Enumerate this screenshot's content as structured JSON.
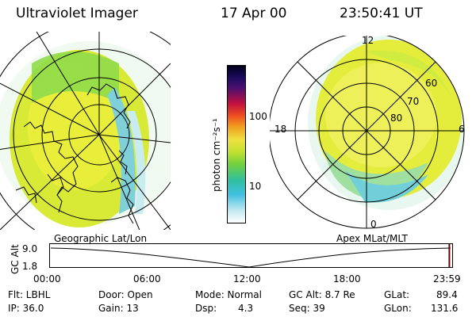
{
  "header": {
    "title": "Ultraviolet Imager",
    "date": "17 Apr 00",
    "time": "23:50:41 UT"
  },
  "colorbar": {
    "unit": "photon cm⁻²s⁻¹",
    "ticks": [
      "100",
      "10"
    ]
  },
  "polar_plot": {
    "mlt_labels": [
      "12",
      "18",
      "6",
      "0"
    ],
    "lat_labels": [
      "60",
      "70",
      "80"
    ]
  },
  "timeline": {
    "left_caption": "Geographic Lat/Lon",
    "right_caption": "Apex MLat/MLT",
    "yaxis_label": "GC Alt",
    "y_ticks": [
      "9.0",
      "1.8"
    ],
    "time_ticks": [
      "00:00",
      "06:00",
      "12:00",
      "18:00",
      "23:59"
    ],
    "current_marker_fraction": 0.993
  },
  "info": {
    "flt": "Flt: LBHL",
    "ip": "IP: 36.0",
    "door": "Door: Open",
    "gain": "Gain: 13",
    "mode": "Mode: Normal",
    "dsp_label": "Dsp:",
    "dsp_value": "4.3",
    "gcalt": "GC Alt: 8.7 Re",
    "seq": "Seq: 39",
    "glat_label": "GLat:",
    "glat_value": "89.4",
    "glon_label": "GLon:",
    "glon_value": "131.6"
  },
  "colors": {
    "oval_main": "#e8ee3a",
    "oval_green": "#8fdc4a",
    "oval_cyan": "#40c8c8",
    "timeline_marker": "#dd0000"
  }
}
